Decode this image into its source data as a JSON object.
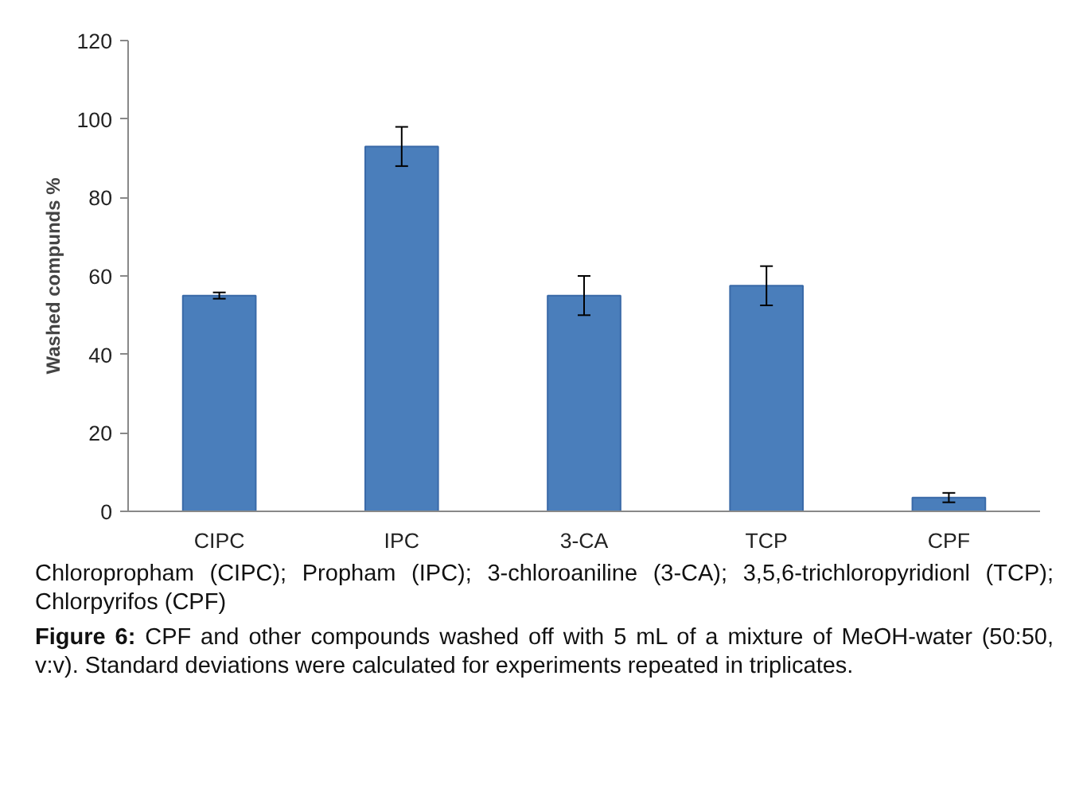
{
  "chart_data": {
    "type": "bar",
    "categories": [
      "CIPC",
      "IPC",
      "3-CA",
      "TCP",
      "CPF"
    ],
    "values": [
      55,
      93,
      55,
      57.5,
      3.5
    ],
    "errors": [
      0.8,
      5,
      5,
      5,
      1.2
    ],
    "color": "#4a7ebb",
    "ylabel": "Washed compunds %",
    "ylim": [
      0,
      120
    ],
    "yticks": [
      0,
      20,
      40,
      60,
      80,
      100,
      120
    ],
    "grid": false,
    "annotations": [
      "Chloropropham (CIPC); Propham (IPC); 3-chloroaniline (3-CA); 3,5,6-trichloropyridionl (TCP); Chlorpyrifos (CPF)",
      "Figure 6: CPF and other compounds washed off with 5 mL of a mixture of MeOH-water (50:50, v:v). Standard deviations were calculated for experiments repeated in triplicates."
    ]
  }
}
